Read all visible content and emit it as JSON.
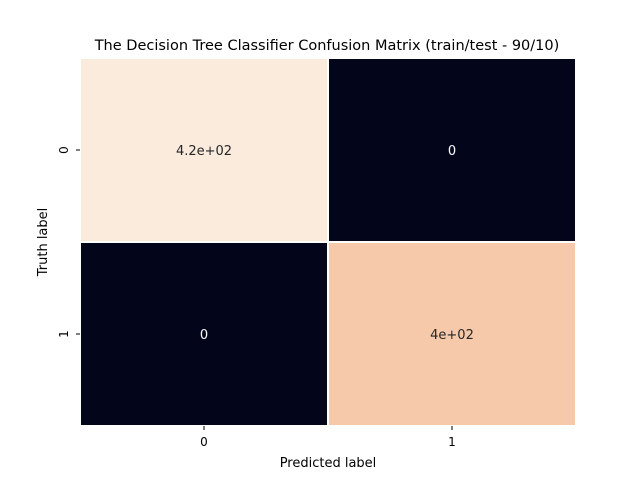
{
  "chart_data": {
    "type": "heatmap",
    "title": "The Decision Tree Classifier Confusion Matrix (train/test - 90/10)",
    "xlabel": "Predicted label",
    "ylabel": "Truth label",
    "x_categories": [
      "0",
      "1"
    ],
    "y_categories": [
      "0",
      "1"
    ],
    "values": [
      [
        420,
        0
      ],
      [
        0,
        400
      ]
    ],
    "annotations": [
      [
        "4.2e+02",
        "0"
      ],
      [
        "0",
        "4e+02"
      ]
    ],
    "colormap": "rocket",
    "value_range": [
      0,
      420
    ],
    "colorbar": false,
    "grid": false,
    "cell_separator_color": "#ffffff",
    "annotation_text_color_on_dark": "#ffffff",
    "annotation_text_color_on_light": "#262626"
  }
}
